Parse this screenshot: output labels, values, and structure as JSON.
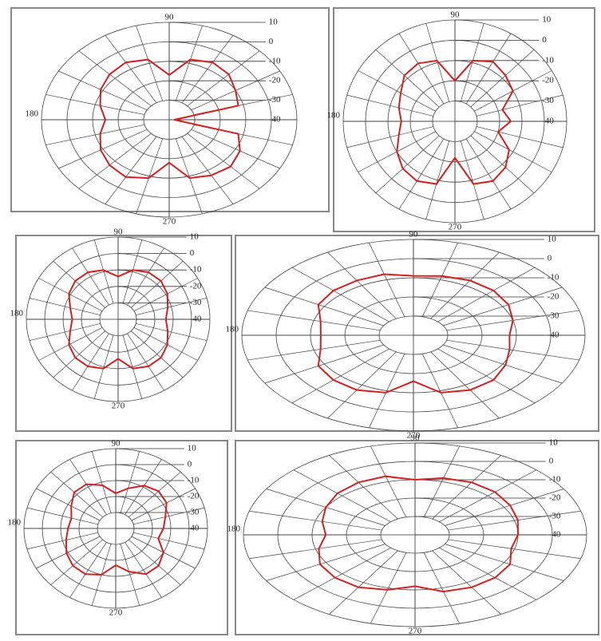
{
  "chart_data": [
    {
      "type": "polar",
      "angle_labels": [
        90,
        180,
        270
      ],
      "rlim": [
        -40,
        10
      ],
      "rticks": [
        10,
        0,
        -10,
        -20,
        -30,
        -40
      ],
      "color": "#d42020",
      "theta": [
        0,
        15,
        30,
        45,
        60,
        75,
        90,
        105,
        120,
        135,
        150,
        165,
        180,
        195,
        210,
        225,
        240,
        255,
        270,
        285,
        300,
        315,
        330,
        345
      ],
      "values": [
        -38,
        -12,
        -10,
        -7,
        -6,
        -8,
        -17,
        -8,
        -6,
        -7,
        -9,
        -12,
        -15,
        -12,
        -9,
        -7,
        -6,
        -9,
        -18,
        -9,
        -7,
        -6,
        -8,
        -12
      ]
    },
    {
      "type": "polar",
      "angle_labels": [
        90,
        180,
        270
      ],
      "rlim": [
        -40,
        10
      ],
      "rticks": [
        10,
        0,
        -10,
        -20,
        -30,
        -40
      ],
      "color": "#d42020",
      "theta": [
        0,
        15,
        30,
        45,
        60,
        75,
        90,
        105,
        120,
        135,
        150,
        165,
        180,
        195,
        210,
        225,
        240,
        255,
        270,
        285,
        300,
        315,
        330,
        345
      ],
      "values": [
        -15,
        -18,
        -10,
        -8,
        -6,
        -9,
        -20,
        -9,
        -7,
        -8,
        -12,
        -14,
        -16,
        -14,
        -10,
        -7,
        -6,
        -8,
        -22,
        -8,
        -6,
        -8,
        -12,
        -20
      ]
    },
    {
      "type": "polar",
      "angle_labels": [
        90,
        180,
        270
      ],
      "rlim": [
        -40,
        10
      ],
      "rticks": [
        10,
        0,
        -10,
        -20,
        -30,
        -40
      ],
      "color": "#d42020",
      "theta": [
        0,
        15,
        30,
        45,
        60,
        75,
        90,
        105,
        120,
        135,
        150,
        165,
        180,
        195,
        210,
        225,
        240,
        255,
        270,
        285,
        300,
        315,
        330,
        345
      ],
      "values": [
        -14,
        -12,
        -9,
        -7,
        -7,
        -9,
        -14,
        -9,
        -7,
        -7,
        -9,
        -13,
        -15,
        -13,
        -9,
        -7,
        -7,
        -9,
        -16,
        -9,
        -7,
        -7,
        -9,
        -12
      ]
    },
    {
      "type": "polar",
      "angle_labels": [
        90,
        180,
        270
      ],
      "rlim": [
        -40,
        10
      ],
      "rticks": [
        10,
        0,
        -10,
        -20,
        -30,
        -40
      ],
      "color": "#d42020",
      "theta": [
        0,
        15,
        30,
        45,
        60,
        75,
        90,
        105,
        120,
        135,
        150,
        165,
        180,
        195,
        210,
        225,
        240,
        255,
        270,
        285,
        300,
        315,
        330,
        345
      ],
      "values": [
        -12,
        -10,
        -8,
        -7,
        -7,
        -8,
        -9,
        -7,
        -7,
        -7,
        -8,
        -12,
        -13,
        -12,
        -8,
        -7,
        -7,
        -9,
        -16,
        -9,
        -7,
        -7,
        -9,
        -11
      ]
    },
    {
      "type": "polar",
      "angle_labels": [
        90,
        180,
        270
      ],
      "rlim": [
        -40,
        10
      ],
      "rticks": [
        10,
        0,
        -10,
        -20,
        -30,
        -40
      ],
      "color": "#d42020",
      "theta": [
        0,
        15,
        30,
        45,
        60,
        75,
        90,
        105,
        120,
        135,
        150,
        165,
        180,
        195,
        210,
        225,
        240,
        255,
        270,
        285,
        300,
        315,
        330,
        345
      ],
      "values": [
        -14,
        -12,
        -8,
        -7,
        -9,
        -14,
        -18,
        -12,
        -8,
        -8,
        -12,
        -15,
        -14,
        -12,
        -9,
        -7,
        -7,
        -10,
        -17,
        -12,
        -7,
        -7,
        -10,
        -16
      ]
    },
    {
      "type": "polar",
      "angle_labels": [
        90,
        180,
        270
      ],
      "rlim": [
        -40,
        10
      ],
      "rticks": [
        10,
        0,
        -10,
        -20,
        -30,
        -40
      ],
      "color": "#d42020",
      "theta": [
        0,
        15,
        30,
        45,
        60,
        75,
        90,
        105,
        120,
        135,
        150,
        165,
        180,
        195,
        210,
        225,
        240,
        255,
        270,
        285,
        300,
        315,
        330,
        345
      ],
      "values": [
        -10,
        -9,
        -8,
        -7,
        -7,
        -8,
        -10,
        -7,
        -7,
        -8,
        -10,
        -12,
        -14,
        -11,
        -8,
        -7,
        -7,
        -9,
        -12,
        -8,
        -7,
        -7,
        -8,
        -11
      ]
    }
  ]
}
